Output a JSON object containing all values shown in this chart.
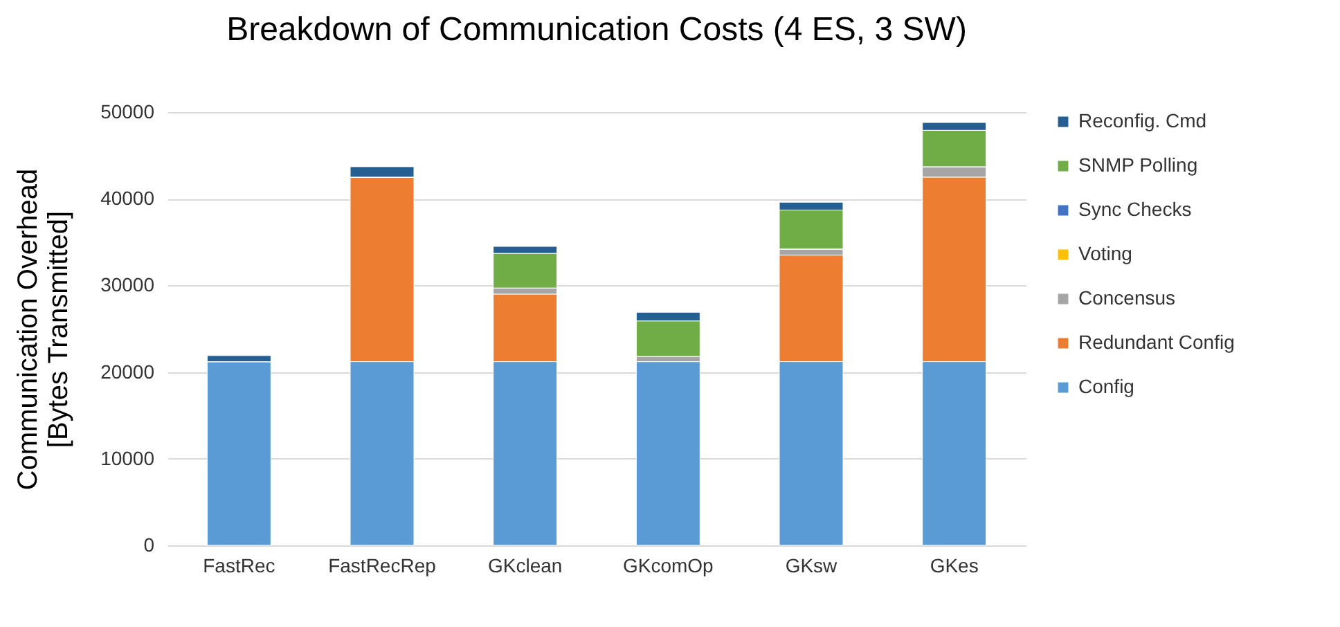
{
  "chart_data": {
    "type": "bar",
    "title": "Breakdown of Communication Costs (4 ES, 3 SW)",
    "ylabel": "Communication Overhead\n[Bytes Transmitted]",
    "categories": [
      "FastRec",
      "FastRecRep",
      "GKclean",
      "GKcomOp",
      "GKsw",
      "GKes"
    ],
    "stacked": true,
    "ylim": [
      0,
      50000
    ],
    "yticks": [
      0,
      10000,
      20000,
      30000,
      40000,
      50000
    ],
    "grid": "y",
    "legend": "right",
    "series": [
      {
        "name": "Config",
        "color": "#5b9bd5",
        "values": [
          21200,
          21200,
          21200,
          21200,
          21200,
          21200
        ]
      },
      {
        "name": "Redundant Config",
        "color": "#ed7d31",
        "values": [
          0,
          21300,
          7800,
          0,
          12300,
          21300
        ]
      },
      {
        "name": "Concensus",
        "color": "#a5a5a5",
        "values": [
          0,
          0,
          700,
          600,
          700,
          1200
        ]
      },
      {
        "name": "Voting",
        "color": "#ffc000",
        "values": [
          0,
          0,
          0,
          0,
          0,
          0
        ]
      },
      {
        "name": "Sync Checks",
        "color": "#4472c4",
        "values": [
          0,
          0,
          0,
          0,
          0,
          0
        ]
      },
      {
        "name": "SNMP Polling",
        "color": "#70ad47",
        "values": [
          0,
          0,
          4000,
          4100,
          4500,
          4200
        ]
      },
      {
        "name": "Reconfig. Cmd",
        "color": "#255e91",
        "values": [
          700,
          1200,
          800,
          1000,
          900,
          900
        ]
      }
    ]
  }
}
